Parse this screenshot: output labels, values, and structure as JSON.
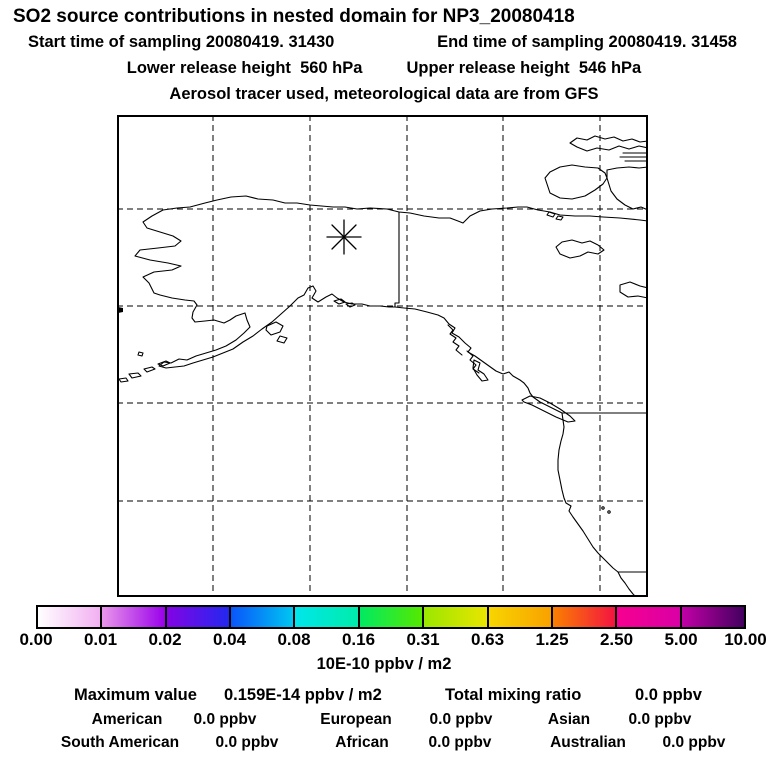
{
  "header": {
    "title": "SO2 source contributions in nested domain for NP3_20080418",
    "start_time": "Start time of sampling 20080419. 31430",
    "end_time": "End time of sampling 20080419. 31458",
    "lower_release": "Lower release height  560 hPa",
    "upper_release": "Upper release height  546 hPa",
    "tracer_note": "Aerosol tracer used, meteorological data are from GFS"
  },
  "colorbar": {
    "tick_labels": [
      "0.00",
      "0.01",
      "0.02",
      "0.04",
      "0.08",
      "0.16",
      "0.31",
      "0.63",
      "1.25",
      "2.50",
      "5.00",
      "10.00"
    ],
    "unit_label": "10E-10 ppbv / m2",
    "segments": [
      {
        "range": "0.00-0.01",
        "color_from": "#ffffff",
        "color_to": "#f2b0f2"
      },
      {
        "range": "0.01-0.02",
        "color_from": "#ea96ea",
        "color_to": "#9a00ea"
      },
      {
        "range": "0.02-0.04",
        "color_from": "#8403e4",
        "color_to": "#2228f0"
      },
      {
        "range": "0.04-0.08",
        "color_from": "#0a55fa",
        "color_to": "#00c6f2"
      },
      {
        "range": "0.08-0.16",
        "color_from": "#00e6ec",
        "color_to": "#00ecaa"
      },
      {
        "range": "0.16-0.31",
        "color_from": "#00ea62",
        "color_to": "#55e900"
      },
      {
        "range": "0.31-0.63",
        "color_from": "#9ae700",
        "color_to": "#e9e500"
      },
      {
        "range": "0.63-1.25",
        "color_from": "#f8d500",
        "color_to": "#f9a100"
      },
      {
        "range": "1.25-2.50",
        "color_from": "#fa8000",
        "color_to": "#f41440"
      },
      {
        "range": "2.50-5.00",
        "color_from": "#f70090",
        "color_to": "#da00a6"
      },
      {
        "range": "5.00-10.00",
        "color_from": "#c200a6",
        "color_to": "#430060"
      }
    ]
  },
  "stats": {
    "maximum_label": "Maximum value",
    "maximum_value": "0.159E-14 ppbv / m2",
    "total_label": "Total mixing ratio",
    "total_value": "0.0 ppbv",
    "regions": [
      {
        "label": "American",
        "value": "0.0 ppbv"
      },
      {
        "label": "European",
        "value": "0.0 ppbv"
      },
      {
        "label": "Asian",
        "value": "0.0 ppbv"
      },
      {
        "label": "South American",
        "value": "0.0 ppbv"
      },
      {
        "label": "African",
        "value": "0.0 ppbv"
      },
      {
        "label": "Australian",
        "value": "0.0 ppbv"
      }
    ]
  },
  "chart_data": {
    "type": "heatmap",
    "title": "SO2 source contributions in nested domain for NP3_20080418",
    "subtitle": [
      "Start time of sampling 20080419. 31430",
      "End time of sampling 20080419. 31458",
      "Lower release height 560 hPa",
      "Upper release height 546 hPa",
      "Aerosol tracer used, meteorological data are from GFS"
    ],
    "colorbar_scale_values": [
      0.0,
      0.01,
      0.02,
      0.04,
      0.08,
      0.16,
      0.31,
      0.63,
      1.25,
      2.5,
      5.0,
      10.0
    ],
    "colorbar_units": "10E-10 ppbv / m2",
    "maximum_value": "0.159E-14 ppbv / m2",
    "total_mixing_ratio_ppbv": 0.0,
    "source_contributions_ppbv": {
      "American": 0.0,
      "European": 0.0,
      "Asian": 0.0,
      "South American": 0.0,
      "African": 0.0,
      "Australian": 0.0
    },
    "map_region": "Alaska, Bering Sea, western Canada and US west coast with dashed lat/lon gridlines",
    "release_point_marker": "asterisk inside map, upper middle area",
    "grid": "dashed gridlines, 6x5 cells",
    "notes": "No concentration shading visible on map; all values below lowest scale level"
  }
}
